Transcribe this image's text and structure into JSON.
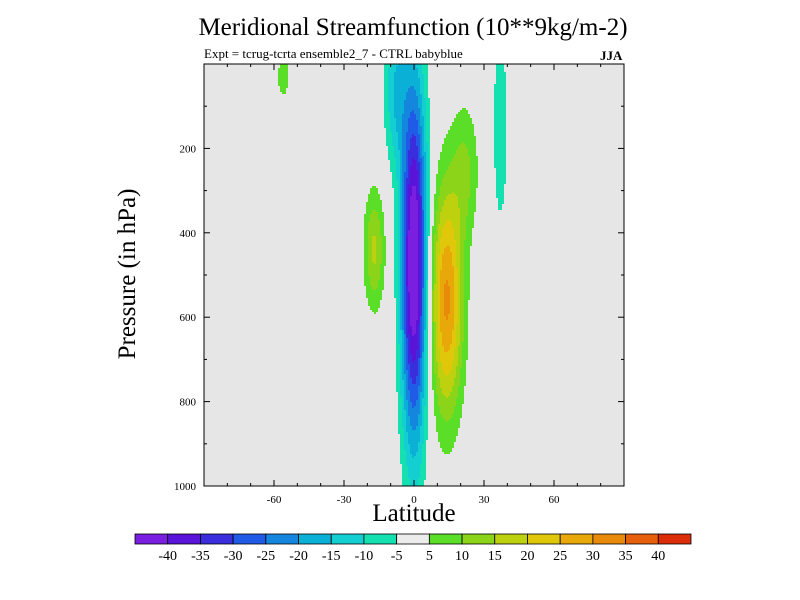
{
  "chart_data": {
    "type": "contour",
    "title": "Meridional Streamfunction (10**9kg/m-2)",
    "subtitle": "Expt = tcrug-tcrta   ensemble2_7 - CTRL babyblue",
    "season": "JJA",
    "xlabel": "Latitude",
    "ylabel": "Pressure (in hPa)",
    "xlim": [
      -90,
      90
    ],
    "ylim": [
      0,
      1000
    ],
    "y_inverted": true,
    "xticks": [
      -60,
      -30,
      0,
      30,
      60
    ],
    "yticks": [
      200,
      400,
      600,
      800,
      1000
    ],
    "background": "#e6e6e6",
    "levels": [
      -40,
      -35,
      -30,
      -25,
      -20,
      -15,
      -10,
      -5,
      5,
      10,
      15,
      20,
      25,
      30,
      35,
      40
    ],
    "colors": [
      "#7a1fe0",
      "#5a14d9",
      "#3a2ddb",
      "#1f5be6",
      "#1486dd",
      "#0ab0d6",
      "#14cfd2",
      "#14e0b0",
      "#ececec",
      "#5ade28",
      "#8cd419",
      "#bed10f",
      "#e0c70a",
      "#e8a80a",
      "#e88a0a",
      "#e65f0a",
      "#dc2d0a"
    ],
    "features": [
      {
        "name": "tropical-negative-cell",
        "center_lat": 0,
        "center_p": 450,
        "extreme": -40
      },
      {
        "name": "southern-positive-cell",
        "center_lat": 13,
        "center_p": 560,
        "extreme": 27
      },
      {
        "name": "southern-hemisphere-positive-lobe",
        "center_lat": -17,
        "center_p": 450,
        "extreme": 15
      },
      {
        "name": "northern-upper-negative-band",
        "center_lat": 37,
        "center_p": 150,
        "extreme": -7
      },
      {
        "name": "southern-upper-positive-patch",
        "center_lat": -56,
        "center_p": 40,
        "extreme": 7
      }
    ]
  }
}
